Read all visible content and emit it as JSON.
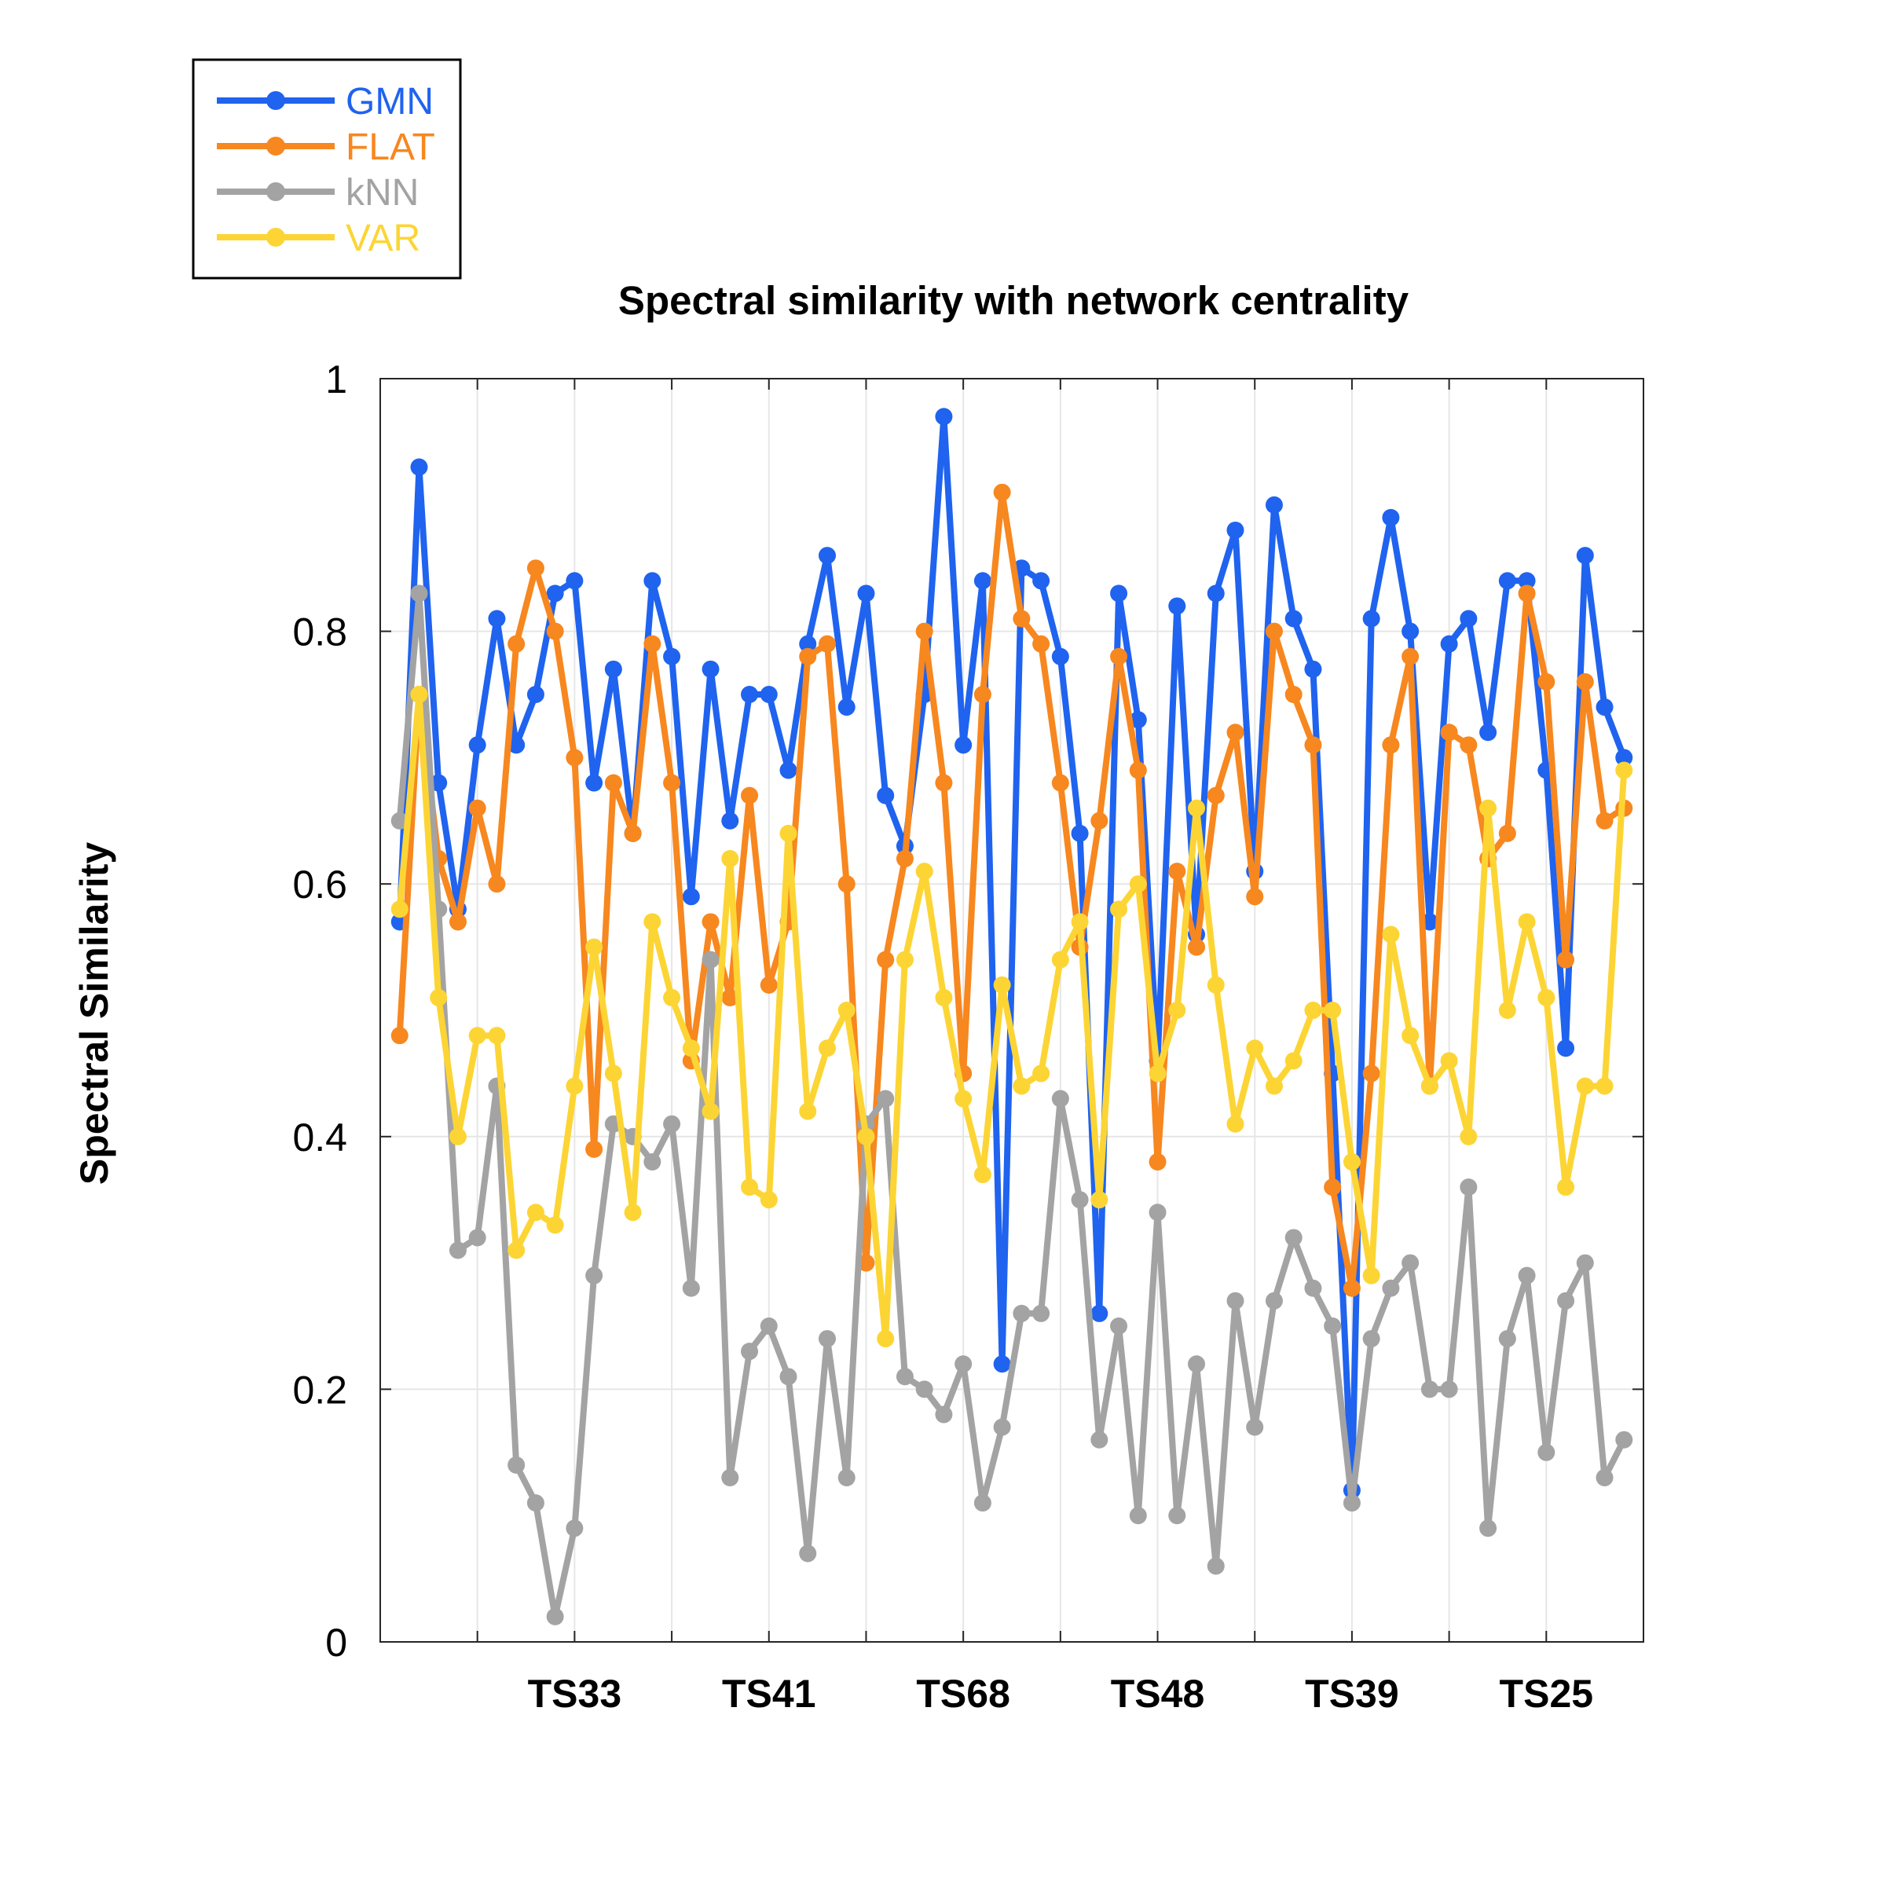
{
  "chart_data": {
    "type": "line",
    "title": "Spectral similarity with network centrality",
    "xlabel": "",
    "ylabel": "Spectral Similarity",
    "ylim": [
      0,
      1
    ],
    "xlim": [
      0,
      65
    ],
    "yticks": [
      0,
      0.2,
      0.4,
      0.6,
      0.8,
      1
    ],
    "ytick_labels": [
      "0",
      "0.2",
      "0.4",
      "0.6",
      "0.8",
      "1"
    ],
    "xticks": [
      5,
      10,
      15,
      20,
      25,
      30,
      35,
      40,
      45,
      50,
      55,
      60
    ],
    "xtick_labels": [
      "",
      "TS33",
      "",
      "TS41",
      "",
      "TS68",
      "",
      "TS48",
      "",
      "TS39",
      "",
      "TS25"
    ],
    "grid": true,
    "legend_position": "top-left, outside",
    "series": [
      {
        "name": "GMN",
        "color": "#1f63ef",
        "values": [
          0.57,
          0.93,
          0.68,
          0.58,
          0.71,
          0.81,
          0.71,
          0.75,
          0.83,
          0.84,
          0.68,
          0.77,
          0.64,
          0.84,
          0.78,
          0.59,
          0.77,
          0.65,
          0.75,
          0.75,
          0.69,
          0.79,
          0.86,
          0.74,
          0.83,
          0.67,
          0.63,
          0.75,
          0.97,
          0.71,
          0.84,
          0.22,
          0.85,
          0.84,
          0.78,
          0.64,
          0.26,
          0.83,
          0.73,
          0.46,
          0.82,
          0.56,
          0.83,
          0.88,
          0.61,
          0.9,
          0.81,
          0.77,
          0.45,
          0.12,
          0.81,
          0.89,
          0.8,
          0.57,
          0.79,
          0.81,
          0.72,
          0.84,
          0.84,
          0.69,
          0.47,
          0.86,
          0.74,
          0.7
        ]
      },
      {
        "name": "FLAT",
        "color": "#f7871f",
        "values": [
          0.48,
          0.75,
          0.62,
          0.57,
          0.66,
          0.6,
          0.79,
          0.85,
          0.8,
          0.7,
          0.39,
          0.68,
          0.64,
          0.79,
          0.68,
          0.46,
          0.57,
          0.51,
          0.67,
          0.52,
          0.57,
          0.78,
          0.79,
          0.6,
          0.3,
          0.54,
          0.62,
          0.8,
          0.68,
          0.45,
          0.75,
          0.91,
          0.81,
          0.79,
          0.68,
          0.55,
          0.65,
          0.78,
          0.69,
          0.38,
          0.61,
          0.55,
          0.67,
          0.72,
          0.59,
          0.8,
          0.75,
          0.71,
          0.36,
          0.28,
          0.45,
          0.71,
          0.78,
          0.44,
          0.72,
          0.71,
          0.62,
          0.64,
          0.83,
          0.76,
          0.54,
          0.76,
          0.65,
          0.66
        ]
      },
      {
        "name": "kNN",
        "color": "#a3a3a3",
        "values": [
          0.65,
          0.83,
          0.58,
          0.31,
          0.32,
          0.44,
          0.14,
          0.11,
          0.02,
          0.09,
          0.29,
          0.41,
          0.4,
          0.38,
          0.41,
          0.28,
          0.54,
          0.13,
          0.23,
          0.25,
          0.21,
          0.07,
          0.24,
          0.13,
          0.41,
          0.43,
          0.21,
          0.2,
          0.18,
          0.22,
          0.11,
          0.17,
          0.26,
          0.26,
          0.43,
          0.35,
          0.16,
          0.25,
          0.1,
          0.34,
          0.1,
          0.22,
          0.06,
          0.27,
          0.17,
          0.27,
          0.32,
          0.28,
          0.25,
          0.11,
          0.24,
          0.28,
          0.3,
          0.2,
          0.2,
          0.36,
          0.09,
          0.24,
          0.29,
          0.15,
          0.27,
          0.3,
          0.13,
          0.16
        ]
      },
      {
        "name": "VAR",
        "color": "#fcd535",
        "values": [
          0.58,
          0.75,
          0.51,
          0.4,
          0.48,
          0.48,
          0.31,
          0.34,
          0.33,
          0.44,
          0.55,
          0.45,
          0.34,
          0.57,
          0.51,
          0.47,
          0.42,
          0.62,
          0.36,
          0.35,
          0.64,
          0.42,
          0.47,
          0.5,
          0.4,
          0.24,
          0.54,
          0.61,
          0.51,
          0.43,
          0.37,
          0.52,
          0.44,
          0.45,
          0.54,
          0.57,
          0.35,
          0.58,
          0.6,
          0.45,
          0.5,
          0.66,
          0.52,
          0.41,
          0.47,
          0.44,
          0.46,
          0.5,
          0.5,
          0.38,
          0.29,
          0.56,
          0.48,
          0.44,
          0.46,
          0.4,
          0.66,
          0.5,
          0.57,
          0.51,
          0.36,
          0.44,
          0.44,
          0.69
        ]
      }
    ]
  }
}
